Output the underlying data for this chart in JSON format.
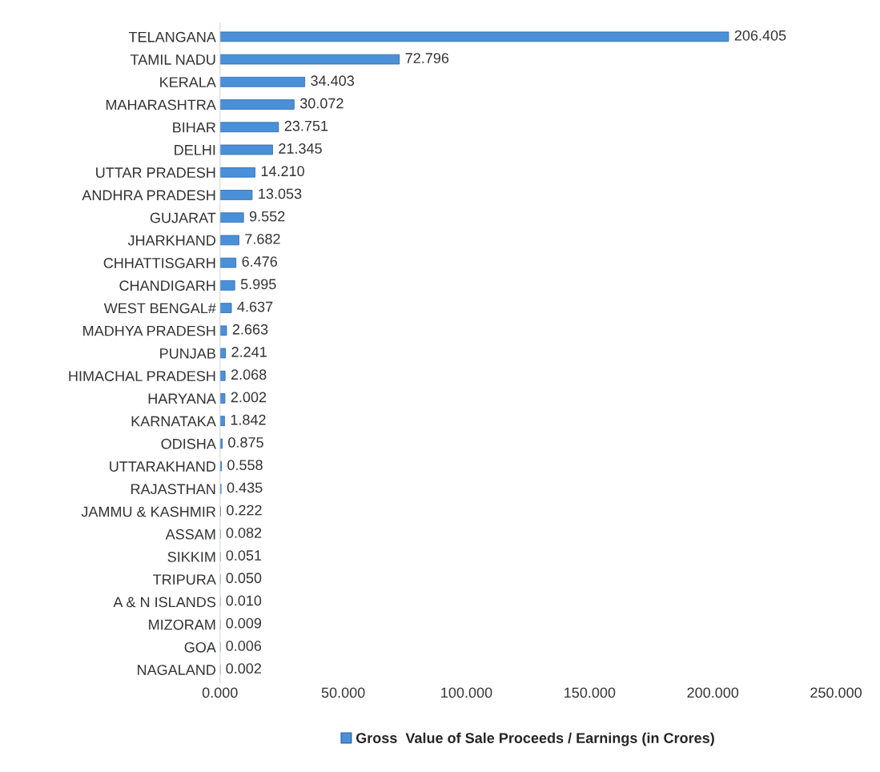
{
  "chart_data": {
    "type": "bar",
    "orientation": "horizontal",
    "categories": [
      "TELANGANA",
      "TAMIL NADU",
      "KERALA",
      "MAHARASHTRA",
      "BIHAR",
      "DELHI",
      "UTTAR PRADESH",
      "ANDHRA PRADESH",
      "GUJARAT",
      "JHARKHAND",
      "CHHATTISGARH",
      "CHANDIGARH",
      "WEST BENGAL#",
      "MADHYA PRADESH",
      "PUNJAB",
      "HIMACHAL PRADESH",
      "HARYANA",
      "KARNATAKA",
      "ODISHA",
      "UTTARAKHAND",
      "RAJASTHAN",
      "JAMMU & KASHMIR",
      "ASSAM",
      "SIKKIM",
      "TRIPURA",
      "A & N ISLANDS",
      "MIZORAM",
      "GOA",
      "NAGALAND"
    ],
    "series": [
      {
        "name": "Gross  Value of Sale Proceeds / Earnings (in Crores)",
        "color": "#4a90d9",
        "values": [
          206.405,
          72.796,
          34.403,
          30.072,
          23.751,
          21.345,
          14.21,
          13.053,
          9.552,
          7.682,
          6.476,
          5.995,
          4.637,
          2.663,
          2.241,
          2.068,
          2.002,
          1.842,
          0.875,
          0.558,
          0.435,
          0.222,
          0.082,
          0.051,
          0.05,
          0.01,
          0.009,
          0.006,
          0.002
        ],
        "value_labels": [
          "206.405",
          "72.796",
          "34.403",
          "30.072",
          "23.751",
          "21.345",
          "14.210",
          "13.053",
          "9.552",
          "7.682",
          "6.476",
          "5.995",
          "4.637",
          "2.663",
          "2.241",
          "2.068",
          "2.002",
          "1.842",
          "0.875",
          "0.558",
          "0.435",
          "0.222",
          "0.082",
          "0.051",
          "0.050",
          "0.010",
          "0.009",
          "0.006",
          "0.002"
        ]
      }
    ],
    "xlim": [
      0,
      250
    ],
    "xticks": [
      {
        "value": 0,
        "label": "0.000"
      },
      {
        "value": 50,
        "label": "50.000"
      },
      {
        "value": 100,
        "label": "100.000"
      },
      {
        "value": 150,
        "label": "150.000"
      },
      {
        "value": 200,
        "label": "200.000"
      },
      {
        "value": 250,
        "label": "250.000"
      }
    ],
    "grid": false,
    "legend": "bottom"
  }
}
